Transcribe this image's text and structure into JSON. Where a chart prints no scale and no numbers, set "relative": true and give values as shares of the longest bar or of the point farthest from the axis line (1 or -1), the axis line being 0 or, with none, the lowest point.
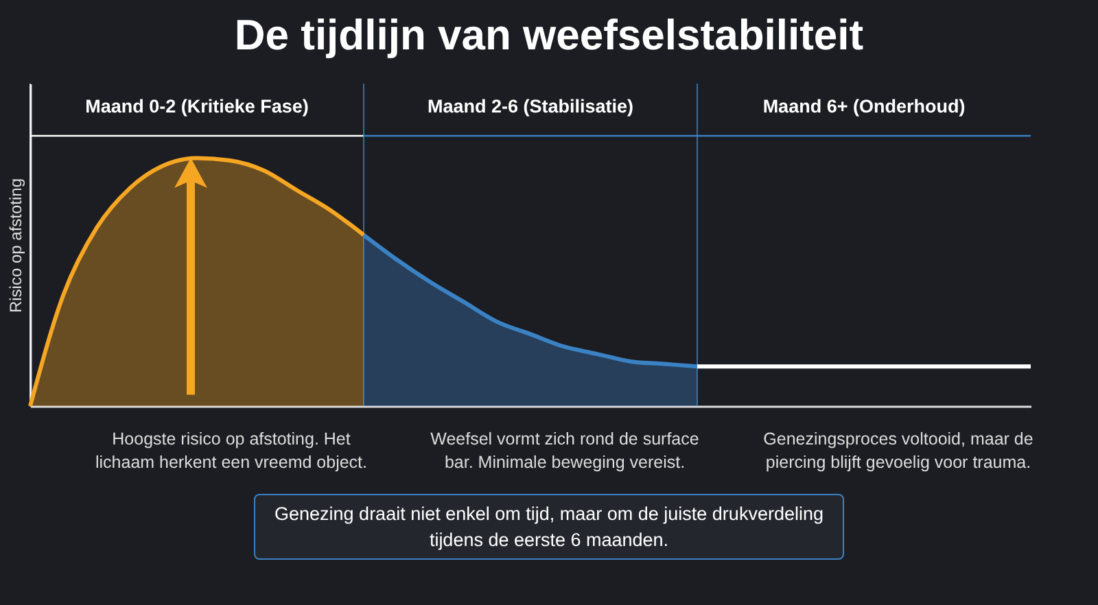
{
  "chart_data": {
    "type": "area",
    "title": "De tijdlijn van weefselstabiliteit",
    "ylabel": "Risico op afstoting",
    "relative": true,
    "categories": [
      null,
      null,
      null,
      null,
      null,
      null,
      null,
      null,
      null,
      null,
      null,
      null,
      null,
      null,
      null,
      null,
      null,
      null,
      null,
      null,
      null,
      null,
      null,
      null,
      null,
      null,
      null,
      null,
      null,
      null,
      null
    ],
    "series": [
      {
        "color": "#f5a623",
        "values": [
          0,
          0.45,
          0.72,
          0.88,
          0.97,
          1,
          0.99,
          0.95,
          0.87,
          0.79,
          0.69,
          null,
          null,
          null,
          null,
          null,
          null,
          null,
          null,
          null,
          null,
          null,
          null,
          null,
          null,
          null,
          null,
          null,
          null,
          null,
          null
        ]
      },
      {
        "color": "#3b82c4",
        "values": [
          null,
          null,
          null,
          null,
          null,
          null,
          null,
          null,
          null,
          null,
          0.69,
          0.59,
          0.5,
          0.42,
          0.34,
          0.29,
          0.24,
          0.21,
          0.18,
          0.17,
          0.16,
          null,
          null,
          null,
          null,
          null,
          null,
          null,
          null,
          null,
          null
        ]
      },
      {
        "type": "line",
        "color": "#ffffff",
        "values": [
          null,
          null,
          null,
          null,
          null,
          null,
          null,
          null,
          null,
          null,
          null,
          null,
          null,
          null,
          null,
          null,
          null,
          null,
          null,
          null,
          0.16,
          0.16,
          0.16,
          0.16,
          0.16,
          0.16,
          0.16,
          0.16,
          0.16,
          0.16,
          0.16
        ]
      }
    ],
    "annotations": [
      "Maand 0-2 (Kritieke Fase)",
      "Maand 2-6 (Stabilisatie)",
      "Maand 6+ (Onderhoud)",
      "Hoogste risico op afstoting. Het lichaam herkent een vreemd object.",
      "Weefsel vormt zich rond de surface bar. Minimale beweging vereist.",
      "Genezingsproces voltooid, maar de piercing blijft gevoelig voor trauma.",
      "Genezing draait niet enkel om tijd, maar om de juiste drukverdeling tijdens de eerste 6 maanden."
    ]
  }
}
